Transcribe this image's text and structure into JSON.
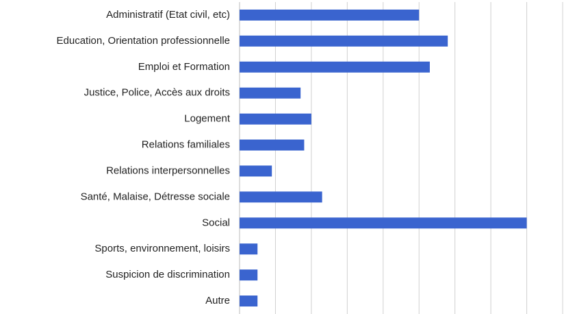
{
  "chart_data": {
    "type": "bar",
    "orientation": "horizontal",
    "categories": [
      "Administratif (Etat civil, etc)",
      "Education, Orientation professionnelle",
      "Emploi et Formation",
      "Justice, Police, Accès aux droits",
      "Logement",
      "Relations familiales",
      "Relations interpersonnelles",
      "Santé, Malaise, Détresse sociale",
      "Social",
      "Sports, environnement, loisirs",
      "Suspicion de discrimination",
      "Autre"
    ],
    "values": [
      5.0,
      5.8,
      5.3,
      1.7,
      2.0,
      1.8,
      0.9,
      2.3,
      8.0,
      0.5,
      0.5,
      0.5
    ],
    "color": "#3a64cf",
    "xlim": [
      0,
      9
    ],
    "xticks": [
      0,
      1,
      2,
      3,
      4,
      5,
      6,
      7,
      8,
      9
    ],
    "grid": true
  }
}
